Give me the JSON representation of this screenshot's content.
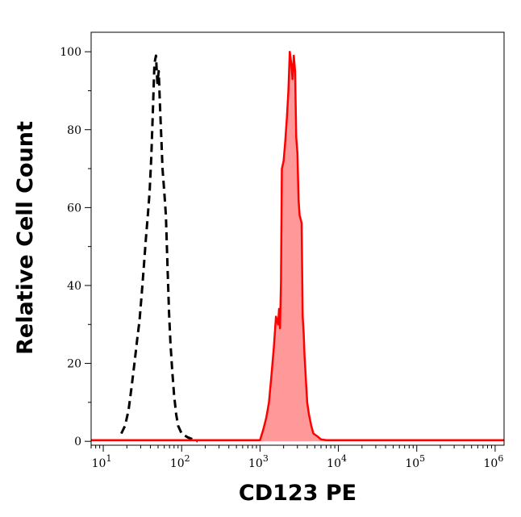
{
  "chart_data": {
    "type": "area",
    "title": "",
    "xlabel": "CD123 PE",
    "ylabel": "Relative Cell Count",
    "xscale": "log",
    "xlim": [
      7,
      1300000
    ],
    "ylim": [
      -1,
      105
    ],
    "grid": false,
    "x_ticks": [
      {
        "base": "10",
        "exp": "1",
        "value": 10
      },
      {
        "base": "10",
        "exp": "2",
        "value": 100
      },
      {
        "base": "10",
        "exp": "3",
        "value": 1000
      },
      {
        "base": "10",
        "exp": "4",
        "value": 10000
      },
      {
        "base": "10",
        "exp": "5",
        "value": 100000
      },
      {
        "base": "10",
        "exp": "6",
        "value": 1000000
      }
    ],
    "y_ticks": [
      {
        "label": "0",
        "value": 0
      },
      {
        "label": "20",
        "value": 20
      },
      {
        "label": "40",
        "value": 40
      },
      {
        "label": "60",
        "value": 60
      },
      {
        "label": "80",
        "value": 80
      },
      {
        "label": "100",
        "value": 100
      }
    ],
    "series": [
      {
        "style": "dashed",
        "color": "#000000",
        "fill": "none",
        "x": [
          17,
          19,
          21,
          23,
          25,
          27,
          29,
          31,
          33,
          35,
          37,
          39,
          41,
          43,
          45,
          47,
          49,
          51,
          53,
          55,
          57,
          60,
          63,
          66,
          69,
          72,
          76,
          80,
          85,
          90,
          100,
          120,
          140,
          160
        ],
        "y": [
          2,
          4,
          8,
          14,
          20,
          26,
          31,
          38,
          45,
          52,
          58,
          64,
          73,
          85,
          97,
          99,
          92,
          95,
          86,
          78,
          70,
          64,
          58,
          45,
          33,
          25,
          18,
          12,
          7,
          4,
          2,
          1,
          0.5,
          0
        ]
      },
      {
        "style": "solid",
        "color": "#ff0000",
        "fill": "#ff9999",
        "x": [
          7,
          100,
          500,
          1000,
          1100,
          1200,
          1300,
          1400,
          1500,
          1600,
          1700,
          1750,
          1800,
          1850,
          1900,
          2000,
          2100,
          2200,
          2300,
          2400,
          2500,
          2600,
          2700,
          2800,
          2900,
          3000,
          3100,
          3200,
          3300,
          3400,
          3500,
          3600,
          3700,
          3800,
          3900,
          4000,
          4200,
          4500,
          4800,
          5200,
          5600,
          6000,
          7000,
          10000,
          100000,
          1300000
        ],
        "y": [
          0.3,
          0.3,
          0.3,
          0.3,
          3,
          6,
          10,
          17,
          24,
          32,
          30,
          34,
          29,
          41,
          70,
          72,
          77,
          83,
          90,
          100,
          97,
          93,
          99,
          95,
          78,
          74,
          62,
          58,
          57,
          56,
          32,
          28,
          22,
          18,
          14,
          10,
          7,
          4,
          2,
          1.5,
          1,
          0.5,
          0.3,
          0.3,
          0.3,
          0.3
        ]
      }
    ]
  }
}
